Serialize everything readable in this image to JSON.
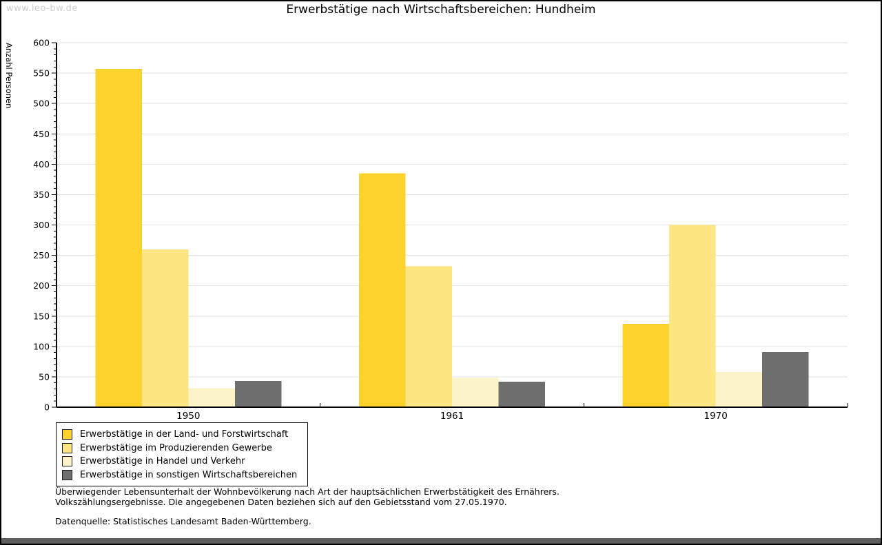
{
  "watermark": "www.leo-bw.de",
  "chart_data": {
    "type": "bar",
    "title": "Erwerbstätige nach Wirtschaftsbereichen: Hundheim",
    "ylabel": "Anzahl Personen",
    "xlabel": "",
    "ylim": [
      0,
      600
    ],
    "ytick_step": 50,
    "minor_tick_step": 10,
    "grid": true,
    "legend_position": "bottom-left",
    "categories": [
      "1950",
      "1961",
      "1970"
    ],
    "series": [
      {
        "name": "Erwerbstätige in der Land- und Forstwirtschaft",
        "color": "#fbd32c",
        "values": [
          557,
          385,
          137
        ]
      },
      {
        "name": "Erwerbstätige im Produzierenden Gewerbe",
        "color": "#fbe681",
        "values": [
          260,
          232,
          300
        ]
      },
      {
        "name": "Erwerbstätige in Handel und Verkehr",
        "color": "#fdf3c8",
        "values": [
          31,
          48,
          58
        ]
      },
      {
        "name": "Erwerbstätige in sonstigen Wirtschaftsbereichen",
        "color": "#6e6e6e",
        "values": [
          43,
          42,
          91
        ]
      }
    ]
  },
  "footnotes": {
    "line1": "Überwiegender Lebensunterhalt der Wohnbevölkerung nach Art der hauptsächlichen Erwerbstätigkeit des Ernährers.",
    "line2": "Volkszählungsergebnisse. Die angegebenen Daten beziehen sich auf den Gebietsstand vom 27.05.1970.",
    "source": "Datenquelle: Statistisches Landesamt Baden-Württemberg."
  },
  "colors": {
    "grid": "#e2e2e2",
    "axis": "#000000",
    "watermark": "#cfcfcf",
    "bottom_bar": "#5f5f5f",
    "background": "#ffffff"
  }
}
